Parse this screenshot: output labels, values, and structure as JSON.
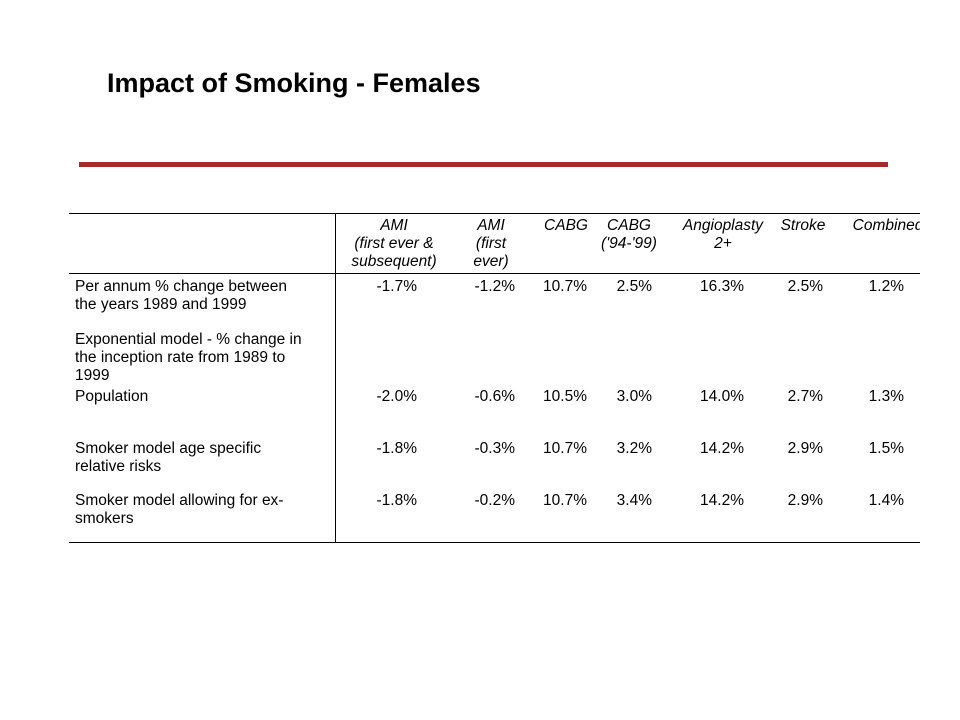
{
  "slide": {
    "title": "Impact of Smoking - Females",
    "accent_color": "#a52a2a"
  },
  "table": {
    "columns": [
      "AMI\n(first ever &\nsubsequent)",
      "AMI\n(first\never)",
      "CABG",
      "CABG\n('94-'99)",
      "Angioplasty\n2+",
      "Stroke",
      "Combined"
    ],
    "rows": [
      {
        "label": "Per annum % change between\nthe years 1989 and 1999",
        "values": [
          "-1.7%",
          "-1.2%",
          "10.7%",
          "2.5%",
          "16.3%",
          "2.5%",
          "1.2%"
        ]
      },
      {
        "label": "Exponential model - % change in\nthe inception rate from 1989 to\n1999",
        "values": []
      },
      {
        "label": "Population",
        "values": [
          "-2.0%",
          "-0.6%",
          "10.5%",
          "3.0%",
          "14.0%",
          "2.7%",
          "1.3%"
        ]
      },
      {
        "label": "Smoker model age specific\nrelative risks",
        "values": [
          "-1.8%",
          "-0.3%",
          "10.7%",
          "3.2%",
          "14.2%",
          "2.9%",
          "1.5%"
        ]
      },
      {
        "label": "Smoker model allowing for ex-\nsmokers",
        "values": [
          "-1.8%",
          "-0.2%",
          "10.7%",
          "3.4%",
          "14.2%",
          "2.9%",
          "1.4%"
        ]
      }
    ]
  }
}
